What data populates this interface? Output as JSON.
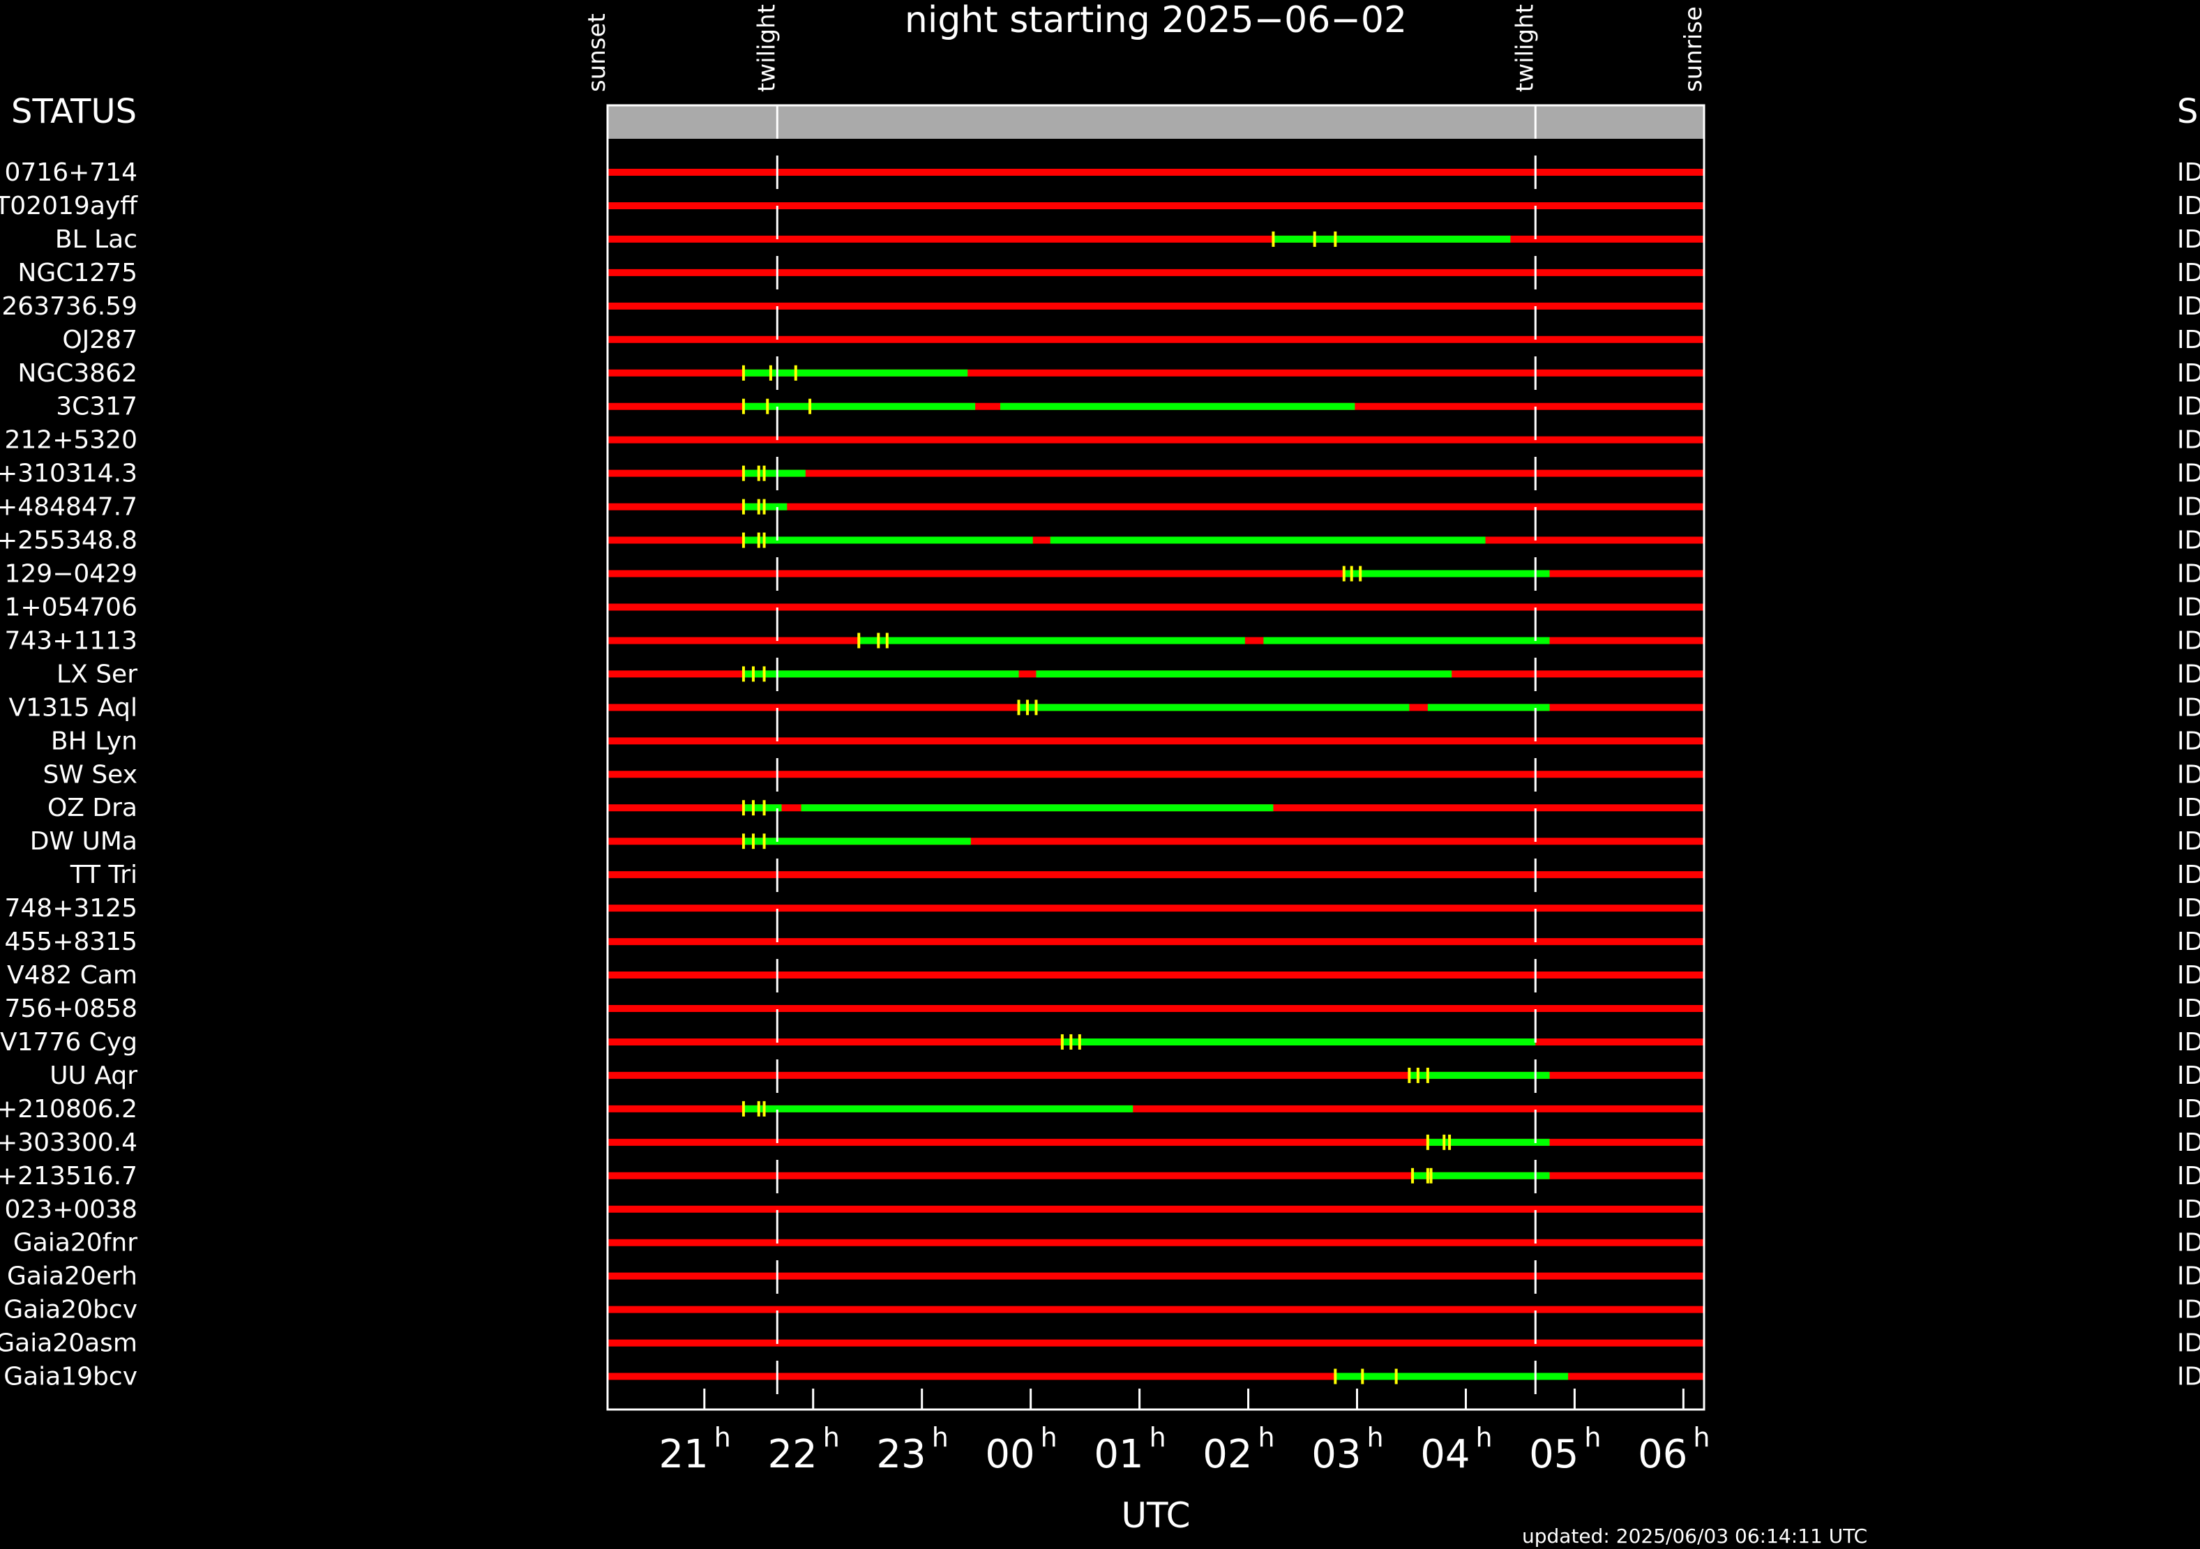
{
  "chart_data": {
    "type": "timeline",
    "title": "night starting 2025−06−02",
    "x_label": "UTC",
    "left_header": "STATUS",
    "right_header": "S",
    "updated": "updated: 2025/06/03 06:14:11 UTC",
    "xlim": [
      20.11,
      30.19
    ],
    "xticks": [
      {
        "value": 21,
        "label": "21"
      },
      {
        "value": 22,
        "label": "22"
      },
      {
        "value": 23,
        "label": "23"
      },
      {
        "value": 24,
        "label": "00"
      },
      {
        "value": 25,
        "label": "01"
      },
      {
        "value": 26,
        "label": "02"
      },
      {
        "value": 27,
        "label": "03"
      },
      {
        "value": 28,
        "label": "04"
      },
      {
        "value": 29,
        "label": "05"
      },
      {
        "value": 30,
        "label": "06"
      }
    ],
    "tick_unit": "h",
    "events": [
      {
        "name": "sunset",
        "value": 20.11
      },
      {
        "name": "twilight",
        "value": 21.67
      },
      {
        "name": "twilight",
        "value": 28.64
      },
      {
        "name": "sunrise",
        "value": 30.19
      }
    ],
    "colors": {
      "visible": "#00ff00",
      "hidden": "#ff0000",
      "marker": "#ffff00"
    },
    "rows": [
      {
        "name": "0716+714",
        "status": "ID",
        "segments": [],
        "markers": []
      },
      {
        "name": "T02019ayff",
        "status": "ID",
        "segments": [],
        "markers": []
      },
      {
        "name": "BL Lac",
        "status": "ID",
        "segments": [
          [
            26.23,
            28.41
          ]
        ],
        "markers": [
          26.23,
          26.61,
          26.8
        ]
      },
      {
        "name": "NGC1275",
        "status": "ID",
        "segments": [],
        "markers": []
      },
      {
        "name": "263736.59",
        "status": "ID",
        "segments": [],
        "markers": []
      },
      {
        "name": "OJ287",
        "status": "ID",
        "segments": [],
        "markers": []
      },
      {
        "name": "NGC3862",
        "status": "ID",
        "segments": [
          [
            21.36,
            23.42
          ]
        ],
        "markers": [
          21.36,
          21.61,
          21.84
        ]
      },
      {
        "name": "3C317",
        "status": "ID",
        "segments": [
          [
            21.36,
            23.49
          ],
          [
            23.72,
            26.98
          ]
        ],
        "markers": [
          21.36,
          21.58,
          21.97
        ]
      },
      {
        "name": "212+5320",
        "status": "ID",
        "segments": [],
        "markers": []
      },
      {
        "name": "+310314.3",
        "status": "ID",
        "segments": [
          [
            21.36,
            21.93
          ]
        ],
        "markers": [
          21.36,
          21.5,
          21.55
        ]
      },
      {
        "name": "+484847.7",
        "status": "ID",
        "segments": [
          [
            21.36,
            21.76
          ]
        ],
        "markers": [
          21.36,
          21.5,
          21.55
        ]
      },
      {
        "name": "+255348.8",
        "status": "ID",
        "segments": [
          [
            21.36,
            24.02
          ],
          [
            24.18,
            28.18
          ]
        ],
        "markers": [
          21.36,
          21.5,
          21.55
        ]
      },
      {
        "name": "129−0429",
        "status": "ID",
        "segments": [
          [
            26.88,
            28.77
          ]
        ],
        "markers": [
          26.88,
          26.95,
          27.03
        ]
      },
      {
        "name": "1+054706",
        "status": "ID",
        "segments": [],
        "markers": []
      },
      {
        "name": "743+1113",
        "status": "ID",
        "segments": [
          [
            22.42,
            25.97
          ],
          [
            26.14,
            28.77
          ]
        ],
        "markers": [
          22.42,
          22.6,
          22.68
        ]
      },
      {
        "name": "LX Ser",
        "status": "ID",
        "segments": [
          [
            21.36,
            23.89
          ],
          [
            24.05,
            27.87
          ]
        ],
        "markers": [
          21.36,
          21.45,
          21.55
        ]
      },
      {
        "name": "V1315 Aql",
        "status": "ID",
        "segments": [
          [
            23.89,
            27.48
          ],
          [
            27.65,
            28.77
          ]
        ],
        "markers": [
          23.89,
          23.97,
          24.05
        ]
      },
      {
        "name": "BH Lyn",
        "status": "ID",
        "segments": [],
        "markers": []
      },
      {
        "name": "SW Sex",
        "status": "ID",
        "segments": [],
        "markers": []
      },
      {
        "name": "OZ Dra",
        "status": "ID",
        "segments": [
          [
            21.36,
            21.71
          ],
          [
            21.89,
            26.23
          ]
        ],
        "markers": [
          21.36,
          21.45,
          21.55
        ]
      },
      {
        "name": "DW UMa",
        "status": "ID",
        "segments": [
          [
            21.36,
            23.45
          ]
        ],
        "markers": [
          21.36,
          21.45,
          21.55
        ]
      },
      {
        "name": "TT Tri",
        "status": "ID",
        "segments": [],
        "markers": []
      },
      {
        "name": "748+3125",
        "status": "ID",
        "segments": [],
        "markers": []
      },
      {
        "name": "455+8315",
        "status": "ID",
        "segments": [],
        "markers": []
      },
      {
        "name": "V482 Cam",
        "status": "ID",
        "segments": [],
        "markers": []
      },
      {
        "name": "756+0858",
        "status": "ID",
        "segments": [],
        "markers": []
      },
      {
        "name": "V1776 Cyg",
        "status": "ID",
        "segments": [
          [
            24.29,
            28.64
          ]
        ],
        "markers": [
          24.29,
          24.37,
          24.45
        ]
      },
      {
        "name": "UU Aqr",
        "status": "ID",
        "segments": [
          [
            27.48,
            28.77
          ]
        ],
        "markers": [
          27.48,
          27.56,
          27.65
        ]
      },
      {
        "name": "+210806.2",
        "status": "ID",
        "segments": [
          [
            21.36,
            24.94
          ]
        ],
        "markers": [
          21.36,
          21.5,
          21.55
        ]
      },
      {
        "name": "+303300.4",
        "status": "ID",
        "segments": [
          [
            27.65,
            28.77
          ]
        ],
        "markers": [
          27.65,
          27.8,
          27.85
        ]
      },
      {
        "name": "+213516.7",
        "status": "ID",
        "segments": [
          [
            27.51,
            28.77
          ]
        ],
        "markers": [
          27.51,
          27.65,
          27.68
        ]
      },
      {
        "name": "023+0038",
        "status": "ID",
        "segments": [],
        "markers": []
      },
      {
        "name": "Gaia20fnr",
        "status": "ID",
        "segments": [],
        "markers": []
      },
      {
        "name": "Gaia20erh",
        "status": "ID",
        "segments": [],
        "markers": []
      },
      {
        "name": "Gaia20bcv",
        "status": "ID",
        "segments": [],
        "markers": []
      },
      {
        "name": "Gaia20asm",
        "status": "ID",
        "segments": [],
        "markers": []
      },
      {
        "name": "Gaia19bcv",
        "status": "ID",
        "segments": [
          [
            26.8,
            28.94
          ]
        ],
        "markers": [
          26.8,
          27.05,
          27.36
        ]
      }
    ]
  }
}
